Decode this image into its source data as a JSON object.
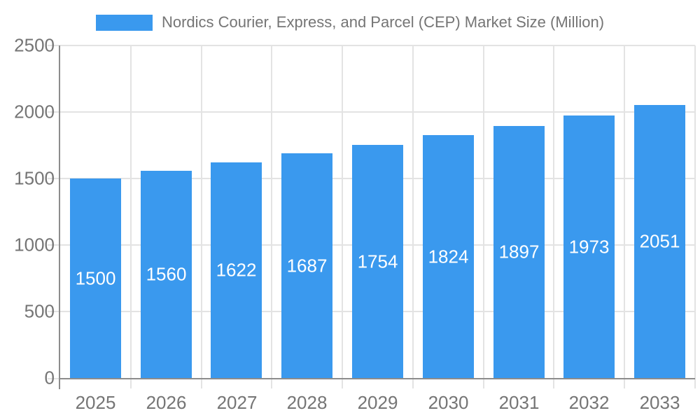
{
  "chart_data": {
    "type": "bar",
    "title": "Nordics Courier, Express, and Parcel (CEP) Market Size (Million)",
    "legend": "Nordics Courier, Express, and Parcel (CEP) Market Size (Million)",
    "legend_position": "top",
    "categories": [
      "2025",
      "2026",
      "2027",
      "2028",
      "2029",
      "2030",
      "2031",
      "2032",
      "2033"
    ],
    "values": [
      1500,
      1560,
      1622,
      1687,
      1754,
      1824,
      1897,
      1973,
      2051
    ],
    "xlabel": "",
    "ylabel": "",
    "ylim": [
      0,
      2500
    ],
    "yticks": [
      0,
      500,
      1000,
      1500,
      2000,
      2500
    ],
    "grid": true,
    "colors": {
      "bar": "#3A99EE",
      "bar_value_label": "#ffffff",
      "axis_text": "#757575",
      "axis_line": "#8c8c8c",
      "gridline": "#e3e3e3",
      "legend_text": "#757575"
    }
  }
}
